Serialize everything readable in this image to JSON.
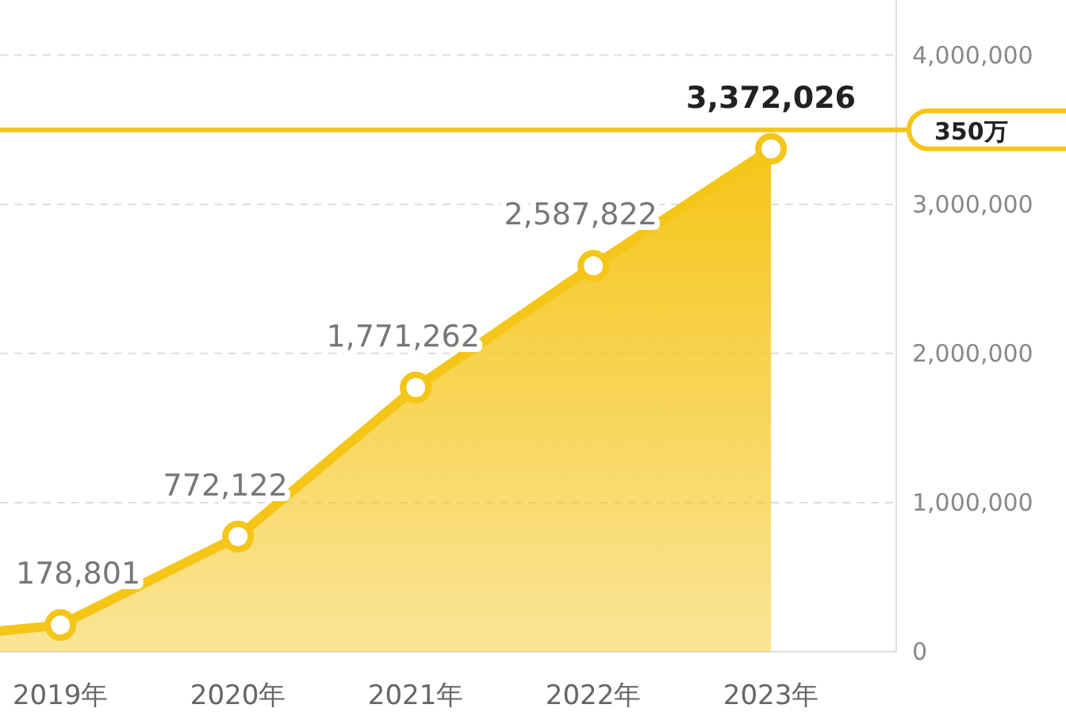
{
  "chart_data": {
    "type": "area",
    "x": [
      2018.66,
      2019,
      2020,
      2021,
      2022,
      2023
    ],
    "values": [
      140000,
      178801,
      772122,
      1771262,
      2587822,
      3372026
    ],
    "value_labels": [
      null,
      "178,801",
      "772,122",
      "1,771,262",
      "2,587,822",
      "3,372,026"
    ],
    "color": "#f5c518",
    "xlim": [
      2018.66,
      2023.705
    ],
    "xticks": [
      {
        "value": 2019,
        "label": "2019年"
      },
      {
        "value": 2020,
        "label": "2020年"
      },
      {
        "value": 2021,
        "label": "2021年"
      },
      {
        "value": 2022,
        "label": "2022年"
      },
      {
        "value": 2023,
        "label": "2023年"
      }
    ],
    "ylim": [
      0,
      4370000
    ],
    "yticks": [
      {
        "value": 0,
        "label": "0"
      },
      {
        "value": 1000000,
        "label": "1,000,000"
      },
      {
        "value": 2000000,
        "label": "2,000,000"
      },
      {
        "value": 3000000,
        "label": "3,000,000"
      },
      {
        "value": 4000000,
        "label": "4,000,000"
      }
    ],
    "grid": "y",
    "marker": "circle",
    "ref_lines": [
      {
        "axis": "y",
        "value": 3500000,
        "label": "350万",
        "color": "#f5c518"
      }
    ]
  }
}
